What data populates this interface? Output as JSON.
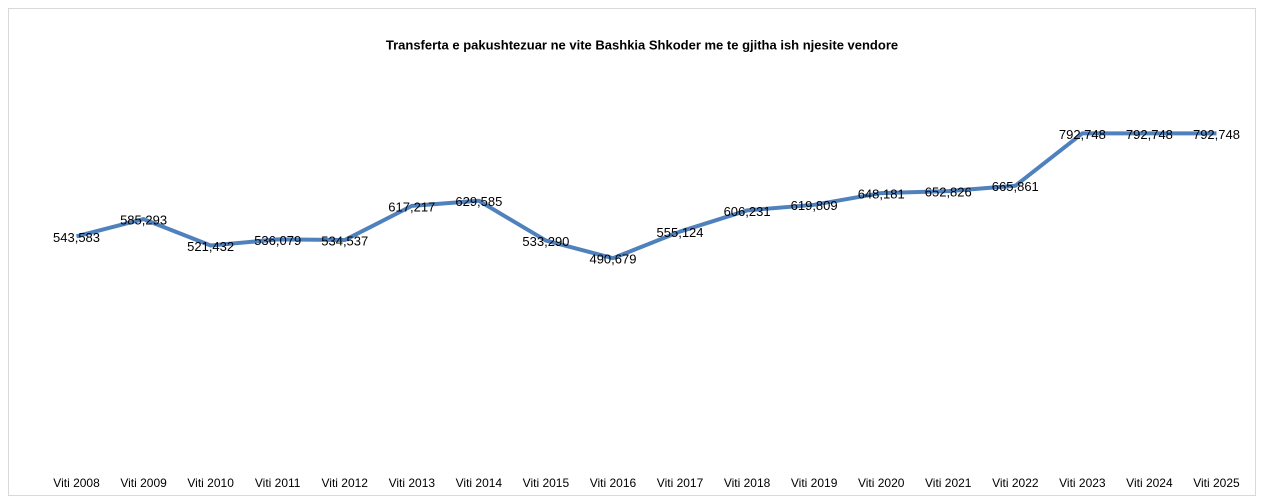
{
  "chart_data": {
    "type": "line",
    "title": "Transferta e pakushtezuar ne vite Bashkia Shkoder me te gjitha ish njesite vendore",
    "categories": [
      "Viti 2008",
      "Viti 2009",
      "Viti 2010",
      "Viti 2011",
      "Viti 2012",
      "Viti 2013",
      "Viti 2014",
      "Viti 2015",
      "Viti 2016",
      "Viti 2017",
      "Viti 2018",
      "Viti 2019",
      "Viti 2020",
      "Viti 2021",
      "Viti 2022",
      "Viti 2023",
      "Viti 2024",
      "Viti 2025"
    ],
    "series": [
      {
        "name": "Transferta",
        "color": "#4f81bd",
        "values": [
          543583,
          585293,
          521432,
          536079,
          534537,
          617217,
          629585,
          533290,
          490679,
          555124,
          606231,
          619809,
          648181,
          652826,
          665861,
          792748,
          792748,
          792748
        ],
        "value_labels": [
          "543,583",
          "585,293",
          "521,432",
          "536,079",
          "534,537",
          "617,217",
          "629,585",
          "533,290",
          "490,679",
          "555,124",
          "606,231",
          "619,809",
          "648,181",
          "652,826",
          "665,861",
          "792,748",
          "792,748",
          "792,748"
        ]
      }
    ],
    "ylim": [
      0,
      900000
    ]
  }
}
